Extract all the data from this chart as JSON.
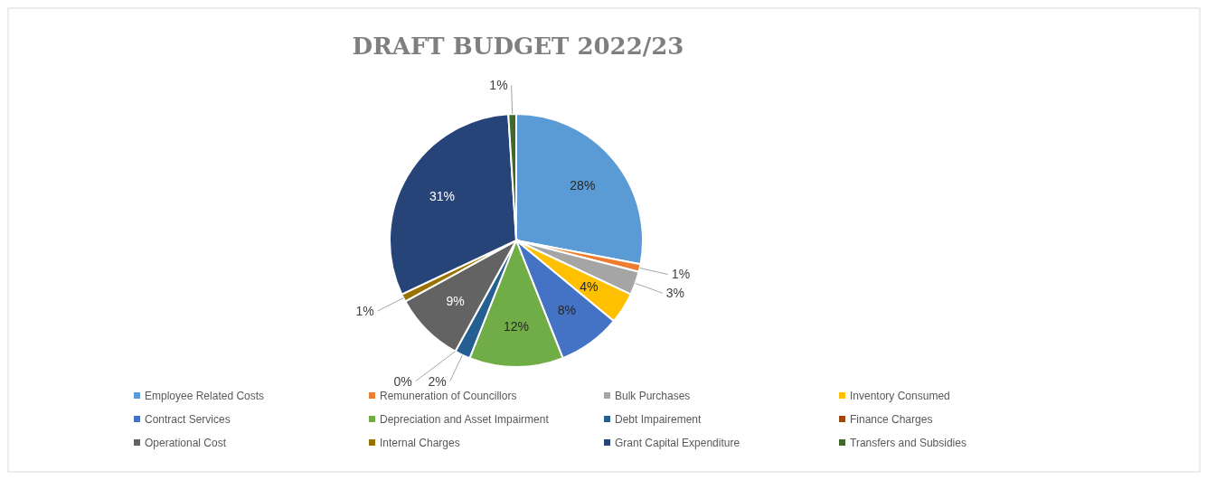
{
  "chart_data": {
    "type": "pie",
    "title": "DRAFT BUDGET 2022/23",
    "categories": [
      "Employee Related Costs",
      "Remuneration of Councillors",
      "Bulk Purchases",
      "Inventory Consumed",
      "Contract Services",
      "Depreciation and Asset Impairment",
      "Debt Impairement",
      "Finance Charges",
      "Operational Cost",
      "Internal Charges",
      "Grant Capital Expenditure",
      "Transfers and Subsidies"
    ],
    "values": [
      28,
      1,
      3,
      4,
      8,
      12,
      2,
      0,
      9,
      1,
      31,
      1
    ],
    "colors": [
      "#5b9bd5",
      "#ed7d31",
      "#a5a5a5",
      "#ffc000",
      "#4472c4",
      "#70ad47",
      "#255e91",
      "#9e480e",
      "#636363",
      "#997300",
      "#264478",
      "#43682b"
    ],
    "value_labels": [
      "28%",
      "1%",
      "3%",
      "4%",
      "8%",
      "12%",
      "2%",
      "0%",
      "9%",
      "1%",
      "31%",
      "1%"
    ],
    "legend": "bottom"
  }
}
